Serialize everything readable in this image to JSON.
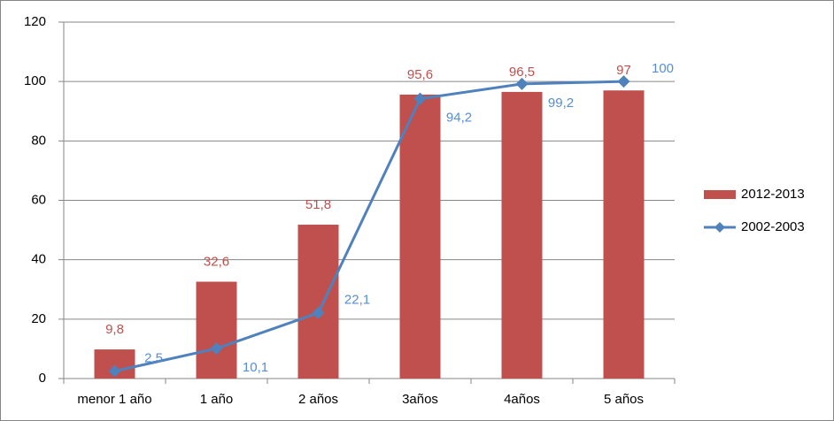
{
  "chart_data": {
    "type": "bar-line",
    "categories": [
      "menor 1 año",
      "1 año",
      "2 años",
      "3años",
      "4años",
      "5 años"
    ],
    "series": [
      {
        "name": "2012-2013",
        "type": "bar",
        "color": "#c0504d",
        "label_color": "#c0504d",
        "values": [
          9.8,
          32.6,
          51.8,
          95.6,
          96.5,
          97
        ],
        "value_labels": [
          "9,8",
          "32,6",
          "51,8",
          "95,6",
          "96,5",
          "97"
        ]
      },
      {
        "name": "2002-2003",
        "type": "line",
        "color": "#4f81bd",
        "label_color": "#558ed5",
        "values": [
          2.5,
          10.1,
          22.1,
          94.2,
          99.2,
          100
        ],
        "value_labels": [
          "2,5",
          "10,1",
          "22,1",
          "94,2",
          "99,2",
          "100"
        ]
      }
    ],
    "ylim": [
      0,
      120
    ],
    "yticks": [
      0,
      20,
      40,
      60,
      80,
      100,
      120
    ],
    "grid": true,
    "legend": "right"
  }
}
